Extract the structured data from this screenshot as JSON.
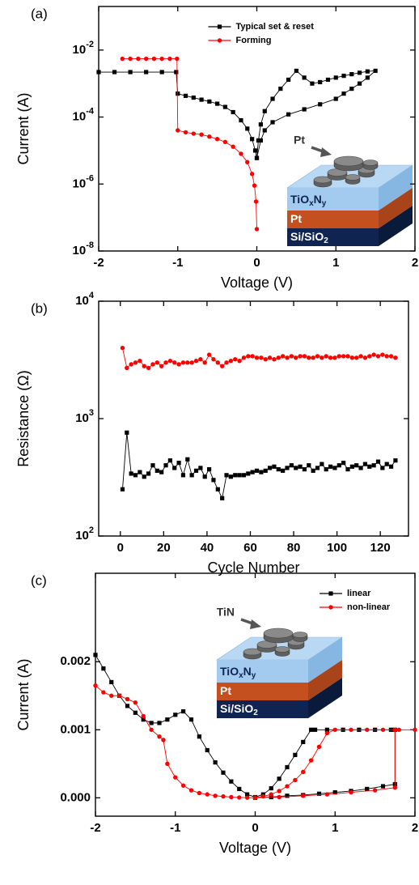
{
  "chart_data": [
    {
      "type": "line",
      "label": "(a)",
      "x_label": "Voltage (V)",
      "y_label": "Current (A)",
      "log_y": true,
      "xlim": [
        -2,
        2
      ],
      "xticks": [
        -2,
        -1,
        0,
        1,
        2
      ],
      "ylim": [
        1e-08,
        0.2
      ],
      "yticks": [
        {
          "value": 1e-08,
          "label": "10",
          "exponent": "-8"
        },
        {
          "value": 1e-06,
          "label": "10",
          "exponent": "-6"
        },
        {
          "value": 0.0001,
          "label": "10",
          "exponent": "-4"
        },
        {
          "value": 0.01,
          "label": "10",
          "exponent": "-2"
        }
      ],
      "legend": "upper center",
      "series": [
        {
          "name": "Typical set & reset",
          "color": "#000000",
          "marker": "square",
          "x": [
            -2,
            -1.8,
            -1.6,
            -1.4,
            -1.2,
            -1.02,
            -1.0,
            -0.9,
            -0.8,
            -0.7,
            -0.6,
            -0.5,
            -0.4,
            -0.3,
            -0.2,
            -0.12,
            -0.06,
            -0.02,
            0,
            0.02,
            0.05,
            0.1,
            0.2,
            0.3,
            0.4,
            0.5,
            0.6,
            0.7,
            0.8,
            0.9,
            1.0,
            1.1,
            1.2,
            1.3,
            1.4,
            1.5,
            1.4,
            1.3,
            1.2,
            1.1,
            1.0,
            0.8,
            0.6,
            0.4,
            0.2,
            0.1,
            0.05,
            0
          ],
          "values": [
            0.0022,
            0.0022,
            0.0022,
            0.0022,
            0.0022,
            0.0022,
            0.0005,
            0.00043,
            0.00038,
            0.00033,
            0.00029,
            0.00025,
            0.0002,
            0.00014,
            8e-05,
            4.5e-05,
            2.2e-05,
            1e-05,
            6e-06,
            2e-05,
            6e-05,
            0.00015,
            0.00035,
            0.0007,
            0.0013,
            0.0024,
            0.0015,
            0.001,
            0.0011,
            0.0013,
            0.0015,
            0.0017,
            0.0019,
            0.0021,
            0.0023,
            0.0024,
            0.0015,
            0.001,
            0.0007,
            0.0005,
            0.00035,
            0.00024,
            0.00017,
            0.00012,
            7e-05,
            4e-05,
            2e-05,
            6e-06
          ]
        },
        {
          "name": "Forming",
          "color": "#ff0000",
          "marker": "circle",
          "x": [
            -1.7,
            -1.6,
            -1.5,
            -1.4,
            -1.3,
            -1.2,
            -1.1,
            -1.01,
            -1.0,
            -0.9,
            -0.8,
            -0.7,
            -0.6,
            -0.5,
            -0.4,
            -0.3,
            -0.2,
            -0.12,
            -0.06,
            -0.03,
            -0.01,
            0
          ],
          "values": [
            0.0055,
            0.0055,
            0.0055,
            0.0055,
            0.0055,
            0.0055,
            0.0055,
            0.0055,
            4e-05,
            3.5e-05,
            3.2e-05,
            3e-05,
            2.6e-05,
            2.2e-05,
            1.8e-05,
            1.3e-05,
            8e-06,
            4.5e-06,
            2e-06,
            9e-07,
            3e-07,
            4.5e-08
          ]
        }
      ],
      "inset": {
        "top_label": "Pt",
        "layers": [
          {
            "parts": [
              "TiO",
              "x",
              "N",
              "y"
            ]
          },
          {
            "parts": [
              "Pt"
            ]
          },
          {
            "parts": [
              "Si/SiO",
              "2"
            ]
          }
        ]
      }
    },
    {
      "type": "line",
      "label": "(b)",
      "x_label": "Cycle Number",
      "y_label": "Resistance (Ω)",
      "log_y": true,
      "xlim": [
        -10,
        133
      ],
      "xticks": [
        0,
        20,
        40,
        60,
        80,
        100,
        120
      ],
      "ylim": [
        100,
        10000
      ],
      "yticks": [
        {
          "value": 100,
          "label": "10",
          "exponent": "2"
        },
        {
          "value": 1000,
          "label": "10",
          "exponent": "3"
        },
        {
          "value": 10000,
          "label": "10",
          "exponent": "4"
        }
      ],
      "series": [
        {
          "color": "#ff0000",
          "marker": "circle",
          "x": [
            1,
            3,
            5,
            7,
            9,
            11,
            13,
            15,
            17,
            19,
            21,
            23,
            25,
            27,
            29,
            31,
            33,
            35,
            37,
            39,
            41,
            43,
            45,
            47,
            49,
            51,
            53,
            55,
            57,
            59,
            61,
            63,
            65,
            67,
            69,
            71,
            73,
            75,
            77,
            79,
            81,
            83,
            85,
            87,
            89,
            91,
            93,
            95,
            97,
            99,
            101,
            103,
            105,
            107,
            109,
            111,
            113,
            115,
            117,
            119,
            121,
            123,
            125,
            127
          ],
          "values": [
            4000,
            2700,
            2900,
            3000,
            3100,
            2800,
            2700,
            2900,
            3000,
            2800,
            3000,
            3100,
            3000,
            2900,
            3000,
            3000,
            3000,
            3100,
            3200,
            3000,
            3500,
            3200,
            3000,
            2800,
            3000,
            3100,
            3200,
            3100,
            3300,
            3400,
            3400,
            3300,
            3300,
            3200,
            3300,
            3200,
            3300,
            3400,
            3300,
            3400,
            3300,
            3400,
            3400,
            3300,
            3300,
            3400,
            3300,
            3400,
            3300,
            3300,
            3400,
            3400,
            3400,
            3300,
            3300,
            3400,
            3300,
            3400,
            3500,
            3400,
            3500,
            3400,
            3400,
            3300
          ]
        },
        {
          "color": "#000000",
          "marker": "square",
          "x": [
            1,
            3,
            5,
            7,
            9,
            11,
            13,
            15,
            17,
            19,
            21,
            23,
            25,
            27,
            29,
            31,
            33,
            35,
            37,
            39,
            41,
            43,
            45,
            47,
            49,
            51,
            53,
            55,
            57,
            59,
            61,
            63,
            65,
            67,
            69,
            71,
            73,
            75,
            77,
            79,
            81,
            83,
            85,
            87,
            89,
            91,
            93,
            95,
            97,
            99,
            101,
            103,
            105,
            107,
            109,
            111,
            113,
            115,
            117,
            119,
            121,
            123,
            125,
            127
          ],
          "values": [
            250,
            760,
            340,
            330,
            350,
            320,
            340,
            400,
            360,
            350,
            400,
            440,
            380,
            420,
            330,
            450,
            330,
            360,
            380,
            320,
            370,
            300,
            250,
            210,
            330,
            320,
            330,
            330,
            330,
            340,
            350,
            360,
            350,
            360,
            380,
            390,
            370,
            360,
            380,
            400,
            380,
            390,
            370,
            400,
            360,
            380,
            410,
            370,
            390,
            380,
            400,
            420,
            370,
            390,
            400,
            380,
            410,
            390,
            400,
            430,
            380,
            410,
            390,
            440
          ]
        }
      ]
    },
    {
      "type": "line",
      "label": "(c)",
      "x_label": "Voltage (V)",
      "y_label": "Current (A)",
      "log_y": false,
      "xlim": [
        -2,
        2
      ],
      "xticks": [
        -2,
        -1,
        0,
        1,
        2
      ],
      "ylim": [
        -0.00027,
        0.0033
      ],
      "yticks": [
        {
          "value": 0,
          "label": "0.000"
        },
        {
          "value": 0.001,
          "label": "0.001"
        },
        {
          "value": 0.002,
          "label": "0.002"
        }
      ],
      "legend": "upper right",
      "series": [
        {
          "name": "linear",
          "color": "#000000",
          "marker": "square",
          "x": [
            -2,
            -1.9,
            -1.8,
            -1.7,
            -1.6,
            -1.5,
            -1.4,
            -1.3,
            -1.2,
            -1.1,
            -1.0,
            -0.9,
            -0.8,
            -0.7,
            -0.6,
            -0.5,
            -0.4,
            -0.3,
            -0.2,
            -0.1,
            0,
            0.1,
            0.2,
            0.3,
            0.4,
            0.5,
            0.6,
            0.7,
            0.75,
            0.9,
            1.1,
            1.3,
            1.5,
            1.7,
            1.75,
            1.75,
            1.6,
            1.4,
            1.2,
            1.0,
            0.8,
            0.6,
            0.4,
            0.2,
            0
          ],
          "values": [
            0.0021,
            0.0019,
            0.0017,
            0.0015,
            0.00135,
            0.00125,
            0.00115,
            0.0011,
            0.0011,
            0.00115,
            0.00122,
            0.00127,
            0.00115,
            0.0009,
            0.0007,
            0.00052,
            0.00037,
            0.00024,
            0.00013,
            5e-05,
            1e-05,
            5e-05,
            0.00014,
            0.00028,
            0.00045,
            0.00063,
            0.00082,
            0.001,
            0.001,
            0.001,
            0.001,
            0.001,
            0.001,
            0.001,
            0.001,
            0.0002,
            0.00017,
            0.00013,
            0.0001,
            8e-05,
            6e-05,
            4e-05,
            3e-05,
            1e-05,
            0
          ]
        },
        {
          "name": "non-linear",
          "color": "#ff0000",
          "marker": "circle",
          "x": [
            -2,
            -1.9,
            -1.8,
            -1.7,
            -1.6,
            -1.5,
            -1.4,
            -1.3,
            -1.2,
            -1.15,
            -1.1,
            -1.0,
            -0.9,
            -0.8,
            -0.7,
            -0.6,
            -0.5,
            -0.4,
            -0.3,
            -0.2,
            -0.1,
            0,
            0.1,
            0.2,
            0.3,
            0.4,
            0.5,
            0.6,
            0.7,
            0.8,
            0.9,
            1.0,
            1.2,
            1.4,
            1.6,
            1.8,
            2.0,
            1.75,
            1.75,
            1.5,
            1.2,
            0.9,
            0.6,
            0.3,
            0
          ],
          "values": [
            0.00165,
            0.00155,
            0.0015,
            0.0015,
            0.00145,
            0.0014,
            0.0012,
            0.001,
            0.0009,
            0.00085,
            0.0005,
            0.0003,
            0.00018,
            0.00011,
            7e-05,
            5e-05,
            3e-05,
            2e-05,
            1e-05,
            5e-06,
            2e-06,
            0,
            2e-05,
            5e-05,
            0.0001,
            0.00017,
            0.00026,
            0.00038,
            0.00055,
            0.00075,
            0.00095,
            0.001,
            0.001,
            0.001,
            0.001,
            0.001,
            0.001,
            0.001,
            0.00015,
            0.00011,
            8e-05,
            5e-05,
            3e-05,
            1e-05,
            0
          ]
        }
      ],
      "inset": {
        "top_label": "TiN",
        "layers": [
          {
            "parts": [
              "TiO",
              "x",
              "N",
              "y"
            ]
          },
          {
            "parts": [
              "Pt"
            ]
          },
          {
            "parts": [
              "Si/SiO",
              "2"
            ]
          }
        ]
      }
    }
  ]
}
